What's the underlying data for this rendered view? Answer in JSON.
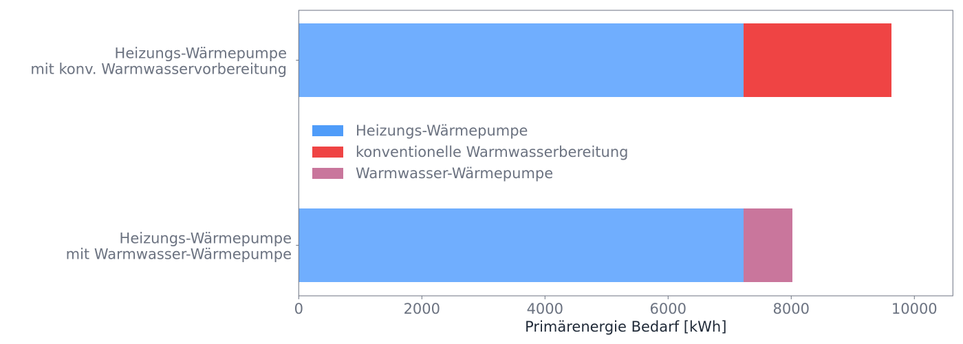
{
  "chart_data": {
    "type": "bar",
    "orientation": "horizontal",
    "stacked": true,
    "categories": [
      "Heizungs-Wärmepumpe\nmit konv. Warmwasservorbereitung",
      "Heizungs-Wärmepumpe\nmit Warmwasser-Wärmepumpe"
    ],
    "series": [
      {
        "name": "Heizungs-Wärmepumpe",
        "values": [
          7226,
          7226
        ],
        "color": "#70aefe",
        "legend_color": "#4f9cf9"
      },
      {
        "name": "konventionelle Warmwasserbereitung",
        "values": [
          2402,
          0
        ],
        "color": "#ef4444",
        "legend_color": "#ef4444"
      },
      {
        "name": "Warmwasser-Wärmepumpe",
        "values": [
          0,
          793
        ],
        "color": "#c9769c",
        "legend_color": "#c9769c"
      }
    ],
    "xlabel": "Primärenergie Bedarf [kWh]",
    "ylabel": "",
    "xlim": [
      0,
      10626
    ],
    "xticks": [
      0,
      2000,
      4000,
      6000,
      8000,
      10000
    ],
    "grid": false,
    "legend_position": "center-left"
  }
}
